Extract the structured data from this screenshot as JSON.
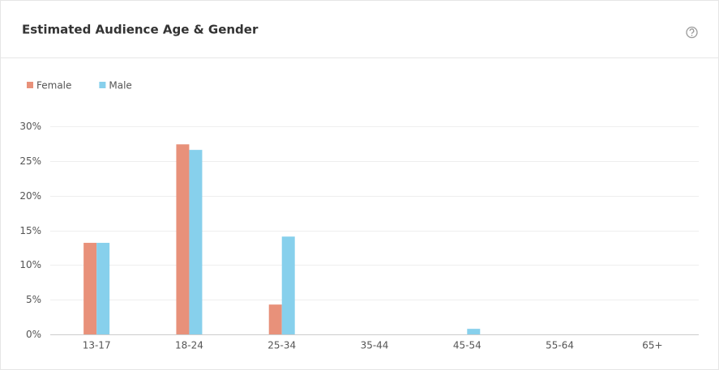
{
  "chart_data": {
    "type": "bar",
    "title": "Estimated Audience Age & Gender",
    "categories": [
      "13-17",
      "18-24",
      "25-34",
      "35-44",
      "45-54",
      "55-64",
      "65+"
    ],
    "series": [
      {
        "name": "Female",
        "color": "#e8917a",
        "values": [
          13.2,
          27.4,
          4.3,
          0,
          0,
          0,
          0
        ]
      },
      {
        "name": "Male",
        "color": "#87d0ec",
        "values": [
          13.2,
          26.6,
          14.1,
          0,
          0.8,
          0,
          0
        ]
      }
    ],
    "ylim": [
      0,
      30
    ],
    "yticks": [
      {
        "value": 0,
        "label": "0%"
      },
      {
        "value": 5,
        "label": "5%"
      },
      {
        "value": 10,
        "label": "10%"
      },
      {
        "value": 15,
        "label": "15%"
      },
      {
        "value": 20,
        "label": "20%"
      },
      {
        "value": 25,
        "label": "25%"
      },
      {
        "value": 30,
        "label": "30%"
      }
    ],
    "grid": true,
    "legend": "top-left"
  }
}
